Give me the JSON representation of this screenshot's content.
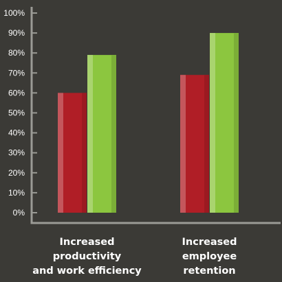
{
  "chart_data": {
    "type": "bar",
    "title": "",
    "xlabel": "",
    "ylabel": "",
    "ylim": [
      0,
      100
    ],
    "y_ticks": [
      "0%",
      "10%",
      "20%",
      "30%",
      "40%",
      "50%",
      "60%",
      "70%",
      "80%",
      "90%",
      "100%"
    ],
    "grid": false,
    "legend": "none",
    "categories": [
      {
        "lines": [
          "Increased",
          "productivity",
          "and work efficiency"
        ]
      },
      {
        "lines": [
          "Increased",
          "employee",
          "retention"
        ]
      }
    ],
    "series": [
      {
        "color": "#b01e26",
        "values": [
          60,
          69
        ]
      },
      {
        "color": "#8cc63f",
        "values": [
          79,
          90
        ]
      }
    ],
    "colors": {
      "background": "#3b3a36",
      "axis": "#9b9b96",
      "text": "#ffffff"
    }
  }
}
